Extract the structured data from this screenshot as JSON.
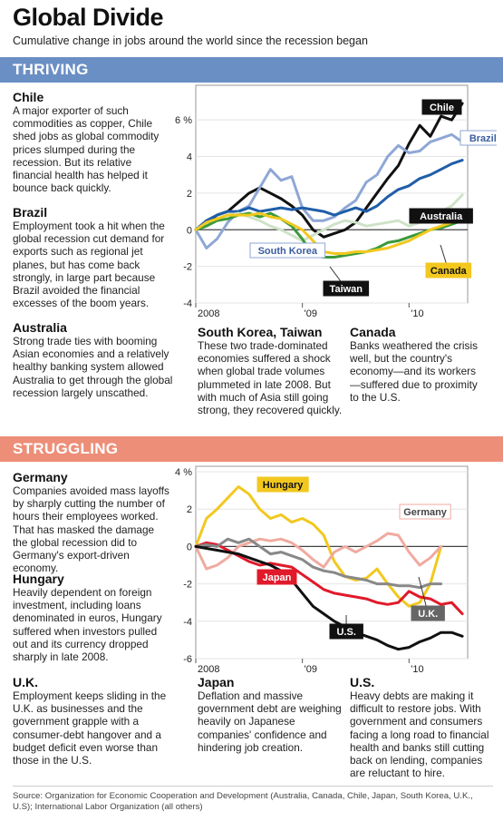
{
  "header": {
    "title": "Global Divide",
    "subtitle": "Cumulative change in jobs around the world since the recession began"
  },
  "sections": {
    "thriving": {
      "label": "THRIVING",
      "color": "#6a8fc4"
    },
    "struggling": {
      "label": "STRUGGLING",
      "color": "#ed8e78"
    }
  },
  "blurbs": {
    "chile": {
      "heading": "Chile",
      "text": "A major exporter of such commodities as copper, Chile shed jobs as global commodity prices slumped during the recession. But its relative financial health has helped it bounce back quickly."
    },
    "brazil": {
      "heading": "Brazil",
      "text": "Employment took a hit when the global recession cut demand for exports such as regional jet planes, but has come back strongly, in large part because Brazil avoided the financial excesses of the boom years."
    },
    "australia": {
      "heading": "Australia",
      "text": "Strong trade ties with booming Asian economies and a relatively healthy banking system allowed Australia to get through the global recession largely unscathed."
    },
    "southkorea": {
      "heading": "South Korea, Taiwan",
      "text": "These two trade-dominated economies suffered a shock when global trade volumes plummeted in late 2008. But with much of Asia still going strong, they recovered quickly."
    },
    "canada": {
      "heading": "Canada",
      "text": "Banks weathered the crisis well, but the country's economy—and its workers—suffered due to proximity to the U.S."
    },
    "germany": {
      "heading": "Germany",
      "text": "Companies avoided mass layoffs by sharply cutting the number of hours their employees worked. That has masked the damage the global recession did to Germany's export-driven economy."
    },
    "hungary": {
      "heading": "Hungary",
      "text": "Heavily dependent on foreign investment, including loans denominated in euros, Hungary suffered when investors pulled out and its currency dropped sharply in late 2008."
    },
    "uk": {
      "heading": "U.K.",
      "text": "Employment keeps sliding in the U.K. as businesses and the government grapple with a consumer-debt hangover and a budget deficit even worse than those in the U.S."
    },
    "japan": {
      "heading": "Japan",
      "text": "Deflation and massive government debt are weighing heavily on Japanese companies' confidence and hindering job creation."
    },
    "us": {
      "heading": "U.S.",
      "text": "Heavy debts are making it difficult to restore jobs. With government and consumers facing a long road to financial health and banks still cutting back on lending, companies are reluctant to hire."
    }
  },
  "source": "Source: Organization for Economic Cooperation and Development (Australia, Canada, Chile, Japan, South Korea, U.K., U.S); International Labor Organization (all others)",
  "chart_data": [
    {
      "type": "line",
      "title": "THRIVING",
      "unit": "%",
      "xlim": [
        2008.0,
        2010.55
      ],
      "ylim": [
        -4,
        7
      ],
      "yticks": [
        "-4",
        "-2",
        "0",
        "2",
        "4",
        "6 %"
      ],
      "xticks": [
        {
          "label": "2008",
          "x": 2008.0
        },
        {
          "label": "'09",
          "x": 2009.0
        },
        {
          "label": "'10",
          "x": 2010.0
        }
      ],
      "zero_line": 0,
      "series": [
        {
          "name": "Chile",
          "color": "#111111",
          "label_style": "dark",
          "x": [
            2008.0,
            2008.1,
            2008.2,
            2008.3,
            2008.4,
            2008.5,
            2008.6,
            2008.7,
            2008.8,
            2008.9,
            2009.0,
            2009.1,
            2009.2,
            2009.3,
            2009.4,
            2009.5,
            2009.6,
            2009.7,
            2009.8,
            2009.9,
            2010.0,
            2010.1,
            2010.2,
            2010.3,
            2010.4,
            2010.5
          ],
          "y": [
            0,
            0.4,
            0.8,
            1.0,
            1.5,
            2.0,
            2.3,
            2.0,
            1.7,
            1.3,
            0.8,
            0,
            -0.4,
            -0.2,
            0,
            0.4,
            1.2,
            2.0,
            2.8,
            3.5,
            4.7,
            5.7,
            5.1,
            6.2,
            6.0,
            6.9
          ]
        },
        {
          "name": "Brazil",
          "color": "#8fa7d6",
          "label_style": "light",
          "x": [
            2008.0,
            2008.1,
            2008.2,
            2008.3,
            2008.4,
            2008.5,
            2008.6,
            2008.7,
            2008.8,
            2008.9,
            2009.0,
            2009.1,
            2009.2,
            2009.3,
            2009.4,
            2009.5,
            2009.6,
            2009.7,
            2009.8,
            2009.9,
            2010.0,
            2010.1,
            2010.2,
            2010.3,
            2010.4,
            2010.5
          ],
          "y": [
            0,
            -1.0,
            -0.5,
            0.4,
            1.0,
            1.3,
            2.3,
            3.3,
            2.7,
            2.9,
            1.2,
            0.5,
            0.5,
            0.7,
            1.2,
            1.6,
            2.6,
            3.0,
            4.0,
            4.6,
            4.2,
            4.3,
            4.8,
            5.0,
            5.2,
            4.8
          ]
        },
        {
          "name": "Australia",
          "color": "#1f5ea8",
          "label_style": "dark",
          "x": [
            2008.0,
            2008.1,
            2008.2,
            2008.3,
            2008.4,
            2008.5,
            2008.6,
            2008.7,
            2008.8,
            2008.9,
            2009.0,
            2009.1,
            2009.2,
            2009.3,
            2009.4,
            2009.5,
            2009.6,
            2009.7,
            2009.8,
            2009.9,
            2010.0,
            2010.1,
            2010.2,
            2010.3,
            2010.4,
            2010.5
          ],
          "y": [
            0,
            0.5,
            0.8,
            1.0,
            1.0,
            1.2,
            1.0,
            1.1,
            1.2,
            1.1,
            1.2,
            1.1,
            1.0,
            0.8,
            1.0,
            1.2,
            1.0,
            1.3,
            1.8,
            2.2,
            2.4,
            2.8,
            3.0,
            3.3,
            3.6,
            3.8
          ]
        },
        {
          "name": "South Korea",
          "color": "#cfe2c8",
          "label_style": "light",
          "x": [
            2008.0,
            2008.1,
            2008.2,
            2008.3,
            2008.4,
            2008.5,
            2008.6,
            2008.7,
            2008.8,
            2008.9,
            2009.0,
            2009.1,
            2009.2,
            2009.3,
            2009.4,
            2009.5,
            2009.6,
            2009.7,
            2009.8,
            2009.9,
            2010.0,
            2010.1,
            2010.2,
            2010.3,
            2010.4,
            2010.5
          ],
          "y": [
            0,
            0.3,
            0.6,
            0.8,
            0.9,
            0.7,
            0.5,
            0.2,
            0,
            -0.3,
            -0.6,
            -0.3,
            0,
            0.3,
            0.5,
            0.4,
            0.2,
            0.3,
            0.4,
            0.5,
            0.2,
            0.4,
            0.6,
            1.0,
            1.3,
            1.9
          ]
        },
        {
          "name": "Taiwan",
          "color": "#3a9a3a",
          "label_style": "dark",
          "x": [
            2008.0,
            2008.1,
            2008.2,
            2008.3,
            2008.4,
            2008.5,
            2008.6,
            2008.7,
            2008.8,
            2008.9,
            2009.0,
            2009.1,
            2009.2,
            2009.3,
            2009.4,
            2009.5,
            2009.6,
            2009.7,
            2009.8,
            2009.9,
            2010.0,
            2010.1,
            2010.2,
            2010.3,
            2010.4,
            2010.5
          ],
          "y": [
            0,
            0.2,
            0.5,
            0.6,
            0.8,
            0.9,
            0.7,
            0.9,
            0.6,
            0.2,
            -0.5,
            -1.4,
            -1.5,
            -1.5,
            -1.4,
            -1.3,
            -1.2,
            -1.0,
            -0.7,
            -0.6,
            -0.4,
            -0.2,
            0,
            0.1,
            0.3,
            0.5
          ]
        },
        {
          "name": "Canada",
          "color": "#f2c81f",
          "label_style": "yellow",
          "x": [
            2008.0,
            2008.1,
            2008.2,
            2008.3,
            2008.4,
            2008.5,
            2008.6,
            2008.7,
            2008.8,
            2008.9,
            2009.0,
            2009.1,
            2009.2,
            2009.3,
            2009.4,
            2009.5,
            2009.6,
            2009.7,
            2009.8,
            2009.9,
            2010.0,
            2010.1,
            2010.2,
            2010.3,
            2010.4,
            2010.5
          ],
          "y": [
            0,
            0.4,
            0.6,
            0.8,
            0.8,
            0.8,
            0.9,
            0.7,
            0.6,
            0.3,
            0,
            -0.6,
            -1.2,
            -1.3,
            -1.3,
            -1.2,
            -1.2,
            -1.1,
            -1.0,
            -0.8,
            -0.6,
            -0.3,
            0,
            0.2,
            0.4,
            0.6
          ]
        }
      ],
      "labels": [
        {
          "text": "Chile",
          "series": "Chile"
        },
        {
          "text": "Brazil",
          "series": "Brazil"
        },
        {
          "text": "Australia",
          "series": "Australia"
        },
        {
          "text": "South Korea",
          "series": "South Korea"
        },
        {
          "text": "Taiwan",
          "series": "Taiwan"
        },
        {
          "text": "Canada",
          "series": "Canada"
        }
      ]
    },
    {
      "type": "line",
      "title": "STRUGGLING",
      "unit": "%",
      "xlim": [
        2008.0,
        2010.55
      ],
      "ylim": [
        -6,
        4
      ],
      "yticks": [
        "-6",
        "-4",
        "-2",
        "0",
        "2",
        "4 %"
      ],
      "xticks": [
        {
          "label": "2008",
          "x": 2008.0
        },
        {
          "label": "'09",
          "x": 2009.0
        },
        {
          "label": "'10",
          "x": 2010.0
        }
      ],
      "zero_line": 0,
      "series": [
        {
          "name": "Hungary",
          "color": "#f2c81f",
          "label_style": "yellow",
          "x": [
            2008.0,
            2008.1,
            2008.2,
            2008.3,
            2008.4,
            2008.5,
            2008.6,
            2008.7,
            2008.8,
            2008.9,
            2009.0,
            2009.1,
            2009.2,
            2009.3,
            2009.4,
            2009.5,
            2009.6,
            2009.7,
            2009.8,
            2009.9,
            2010.0,
            2010.1,
            2010.2,
            2010.3
          ],
          "y": [
            0,
            1.5,
            2.0,
            2.6,
            3.2,
            2.8,
            2.0,
            1.5,
            1.7,
            1.3,
            1.5,
            1.2,
            0.6,
            -0.8,
            -1.6,
            -1.8,
            -1.7,
            -1.2,
            -2.0,
            -2.7,
            -3.2,
            -3.0,
            -2.0,
            0
          ]
        },
        {
          "name": "Germany",
          "color": "#f0aaa0",
          "label_style": "pink",
          "x": [
            2008.0,
            2008.1,
            2008.2,
            2008.3,
            2008.4,
            2008.5,
            2008.6,
            2008.7,
            2008.8,
            2008.9,
            2009.0,
            2009.1,
            2009.2,
            2009.3,
            2009.4,
            2009.5,
            2009.6,
            2009.7,
            2009.8,
            2009.9,
            2010.0,
            2010.1,
            2010.2,
            2010.3
          ],
          "y": [
            0,
            -1.2,
            -1.0,
            -0.6,
            0,
            0.2,
            0.4,
            0.3,
            0.4,
            0.2,
            -0.2,
            -0.7,
            -1.1,
            -0.3,
            0,
            -0.3,
            0,
            0.3,
            0.7,
            0.6,
            -0.3,
            -1.0,
            -0.6,
            0
          ]
        },
        {
          "name": "Japan",
          "color": "#e01a2a",
          "label_style": "red",
          "x": [
            2008.0,
            2008.1,
            2008.2,
            2008.3,
            2008.4,
            2008.5,
            2008.6,
            2008.7,
            2008.8,
            2008.9,
            2009.0,
            2009.1,
            2009.2,
            2009.3,
            2009.4,
            2009.5,
            2009.6,
            2009.7,
            2009.8,
            2009.9,
            2010.0,
            2010.1,
            2010.2,
            2010.3,
            2010.4,
            2010.5
          ],
          "y": [
            0,
            0.2,
            0.1,
            -0.2,
            -0.5,
            -0.8,
            -1.0,
            -0.9,
            -1.0,
            -1.1,
            -1.5,
            -1.9,
            -2.3,
            -2.5,
            -2.6,
            -2.7,
            -2.8,
            -3.0,
            -3.1,
            -3.0,
            -2.4,
            -2.7,
            -2.8,
            -3.1,
            -3.0,
            -3.6
          ]
        },
        {
          "name": "U.K.",
          "color": "#888888",
          "label_style": "gray",
          "x": [
            2008.0,
            2008.1,
            2008.2,
            2008.3,
            2008.4,
            2008.5,
            2008.6,
            2008.7,
            2008.8,
            2008.9,
            2009.0,
            2009.1,
            2009.2,
            2009.3,
            2009.4,
            2009.5,
            2009.6,
            2009.7,
            2009.8,
            2009.9,
            2010.0,
            2010.1,
            2010.2,
            2010.3
          ],
          "y": [
            0,
            0.1,
            0,
            0.4,
            0.2,
            0.4,
            0,
            -0.4,
            -0.3,
            -0.5,
            -0.7,
            -1.1,
            -1.3,
            -1.4,
            -1.6,
            -1.7,
            -1.8,
            -2.0,
            -2.0,
            -2.1,
            -2.1,
            -2.2,
            -2.0,
            -2.0
          ]
        },
        {
          "name": "U.S.",
          "color": "#111111",
          "label_style": "dark",
          "x": [
            2008.0,
            2008.1,
            2008.2,
            2008.3,
            2008.4,
            2008.5,
            2008.6,
            2008.7,
            2008.8,
            2008.9,
            2009.0,
            2009.1,
            2009.2,
            2009.3,
            2009.4,
            2009.5,
            2009.6,
            2009.7,
            2009.8,
            2009.9,
            2010.0,
            2010.1,
            2010.2,
            2010.3,
            2010.4,
            2010.5
          ],
          "y": [
            0,
            -0.1,
            -0.2,
            -0.3,
            -0.4,
            -0.6,
            -0.8,
            -1.0,
            -1.3,
            -1.8,
            -2.5,
            -3.2,
            -3.6,
            -4.0,
            -4.3,
            -4.6,
            -4.8,
            -5.0,
            -5.3,
            -5.5,
            -5.4,
            -5.1,
            -4.9,
            -4.6,
            -4.6,
            -4.8
          ]
        }
      ],
      "labels": [
        {
          "text": "Hungary",
          "series": "Hungary"
        },
        {
          "text": "Germany",
          "series": "Germany"
        },
        {
          "text": "Japan",
          "series": "Japan"
        },
        {
          "text": "U.K.",
          "series": "U.K."
        },
        {
          "text": "U.S.",
          "series": "U.S."
        }
      ]
    }
  ]
}
